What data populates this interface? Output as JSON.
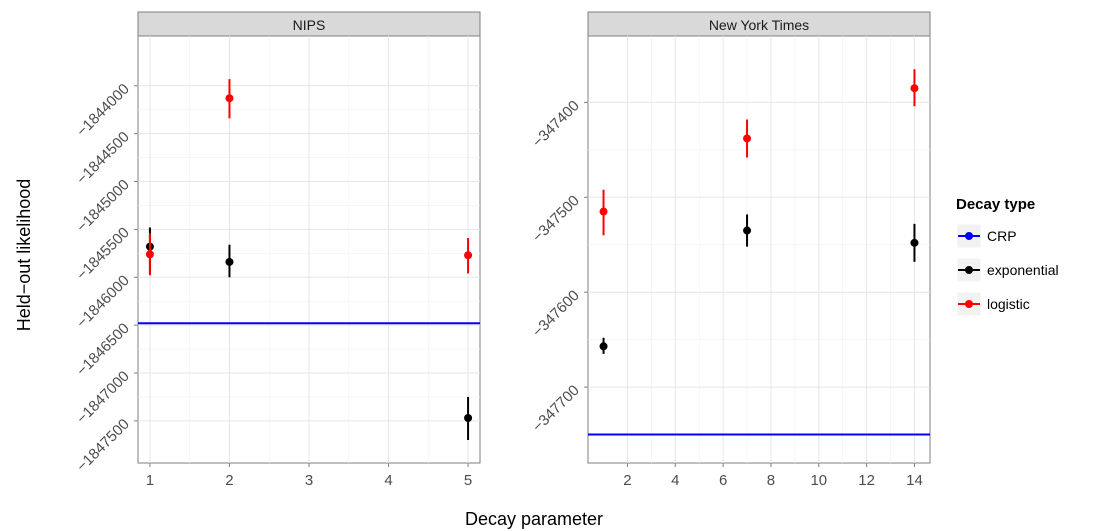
{
  "chart_data": {
    "type": "scatter",
    "xlabel": "Decay parameter",
    "ylabel": "Held−out likelihood",
    "legend": {
      "title": "Decay type",
      "placement": "right",
      "entries": [
        {
          "label": "CRP",
          "color": "#0000ff"
        },
        {
          "label": "exponential",
          "color": "#000000"
        },
        {
          "label": "logistic",
          "color": "#ff0000"
        }
      ]
    },
    "panels": [
      {
        "name": "NIPS",
        "xlim": [
          0.85,
          5.15
        ],
        "ylim": [
          -1847940,
          -1843480
        ],
        "x_ticks": [
          1,
          2,
          3,
          4,
          5
        ],
        "x_tick_labels": [
          "1",
          "2",
          "3",
          "4",
          "5"
        ],
        "y_ticks": [
          -1844000,
          -1844500,
          -1845000,
          -1845500,
          -1846000,
          -1846500,
          -1847000,
          -1847500
        ],
        "y_tick_labels": [
          "−1844000",
          "−1844500",
          "−1845000",
          "−1845500",
          "−1846000",
          "−1846500",
          "−1847000",
          "−1847500"
        ],
        "hline": {
          "series": "CRP",
          "y": -1846480
        },
        "series": [
          {
            "name": "exponential",
            "points": [
              {
                "x": 1,
                "y": -1845680,
                "low": -1845960,
                "high": -1845480
              },
              {
                "x": 2,
                "y": -1845840,
                "low": -1846000,
                "high": -1845660
              },
              {
                "x": 5,
                "y": -1847470,
                "low": -1847700,
                "high": -1847250
              }
            ]
          },
          {
            "name": "logistic",
            "points": [
              {
                "x": 1,
                "y": -1845760,
                "low": -1845980,
                "high": -1845540
              },
              {
                "x": 2,
                "y": -1844130,
                "low": -1844340,
                "high": -1843930
              },
              {
                "x": 5,
                "y": -1845770,
                "low": -1845960,
                "high": -1845590
              }
            ]
          }
        ]
      },
      {
        "name": "New York Times",
        "xlim": [
          0.35,
          14.65
        ],
        "ylim": [
          -347780,
          -347330
        ],
        "x_ticks": [
          2,
          4,
          6,
          8,
          10,
          12,
          14
        ],
        "x_tick_labels": [
          "2",
          "4",
          "6",
          "8",
          "10",
          "12",
          "14"
        ],
        "y_ticks": [
          -347400,
          -347500,
          -347600,
          -347700
        ],
        "y_tick_labels": [
          "−347400",
          "−347500",
          "−347600",
          "−347700"
        ],
        "hline": {
          "series": "CRP",
          "y": -347750
        },
        "series": [
          {
            "name": "exponential",
            "points": [
              {
                "x": 1,
                "y": -347657,
                "low": -347665,
                "high": -347648
              },
              {
                "x": 7,
                "y": -347535,
                "low": -347552,
                "high": -347518
              },
              {
                "x": 14,
                "y": -347548,
                "low": -347568,
                "high": -347528
              }
            ]
          },
          {
            "name": "logistic",
            "points": [
              {
                "x": 1,
                "y": -347515,
                "low": -347540,
                "high": -347492
              },
              {
                "x": 7,
                "y": -347438,
                "low": -347458,
                "high": -347418
              },
              {
                "x": 14,
                "y": -347385,
                "low": -347404,
                "high": -347365
              }
            ]
          }
        ]
      }
    ]
  }
}
